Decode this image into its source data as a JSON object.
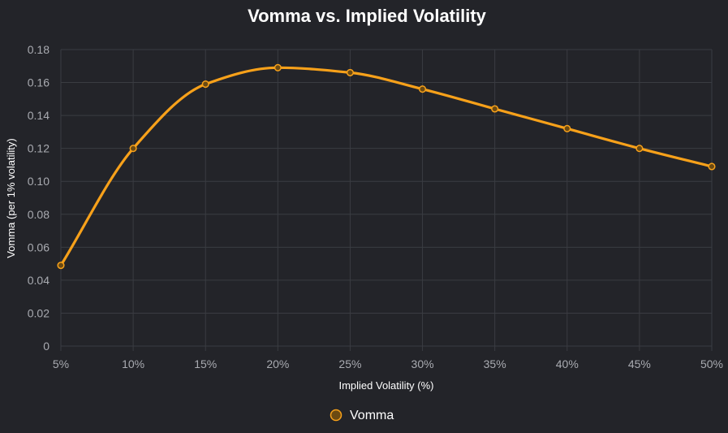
{
  "chart_data": {
    "type": "line",
    "title": "Vomma vs. Implied Volatility",
    "xlabel": "Implied Volatility (%)",
    "ylabel": "Vomma (per 1% volatility)",
    "categories": [
      "5%",
      "10%",
      "15%",
      "20%",
      "25%",
      "30%",
      "35%",
      "40%",
      "45%",
      "50%"
    ],
    "series": [
      {
        "name": "Vomma",
        "values": [
          0.049,
          0.12,
          0.159,
          0.169,
          0.166,
          0.156,
          0.144,
          0.132,
          0.12,
          0.109
        ]
      }
    ],
    "ylim": [
      0,
      0.18
    ],
    "yticks": [
      "0",
      "0.02",
      "0.04",
      "0.06",
      "0.08",
      "0.10",
      "0.12",
      "0.14",
      "0.16",
      "0.18"
    ],
    "grid": true,
    "legend_position": "bottom",
    "colors": {
      "line": "#f7a11a",
      "point_fill": "#6b4a12",
      "background": "#232429",
      "grid": "#3a3c42",
      "tick_text": "#a9abb1"
    }
  }
}
